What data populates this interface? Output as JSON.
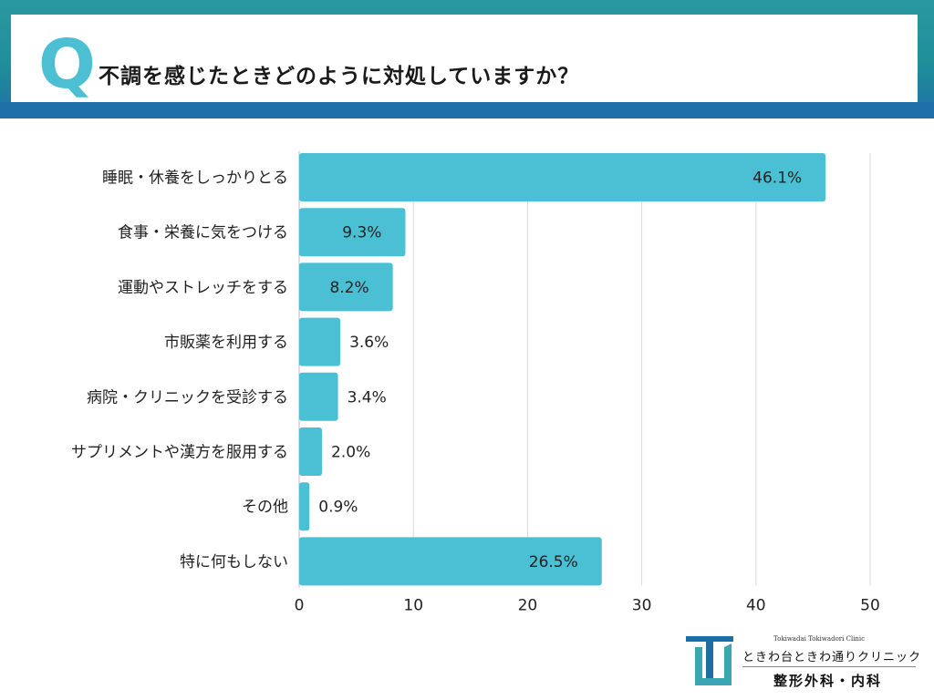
{
  "header": {
    "q_mark": "Q",
    "question": "不調を感じたときどのように対処していますか？"
  },
  "chart_data": {
    "type": "bar",
    "orientation": "horizontal",
    "categories": [
      "睡眠・休養をしっかりとる",
      "食事・栄養に気をつける",
      "運動やストレッチをする",
      "市販薬を利用する",
      "病院・クリニックを受診する",
      "サプリメントや漢方を服用する",
      "その他",
      "特に何もしない"
    ],
    "values": [
      46.1,
      9.3,
      8.2,
      3.6,
      3.4,
      2.0,
      0.9,
      26.5
    ],
    "labels": [
      "46.1%",
      "9.3%",
      "8.2%",
      "3.6%",
      "3.4%",
      "2.0%",
      "0.9%",
      "26.5%"
    ],
    "xlim": [
      0,
      50
    ],
    "xticks": [
      0,
      10,
      20,
      30,
      40,
      50
    ],
    "grid": true,
    "bar_color": "#4bbfd3"
  },
  "logo": {
    "en": "Tokiwadai Tokiwadori Clinic",
    "jp": "ときわ台ときわ通りクリニック",
    "dept": "整形外科・内科"
  }
}
